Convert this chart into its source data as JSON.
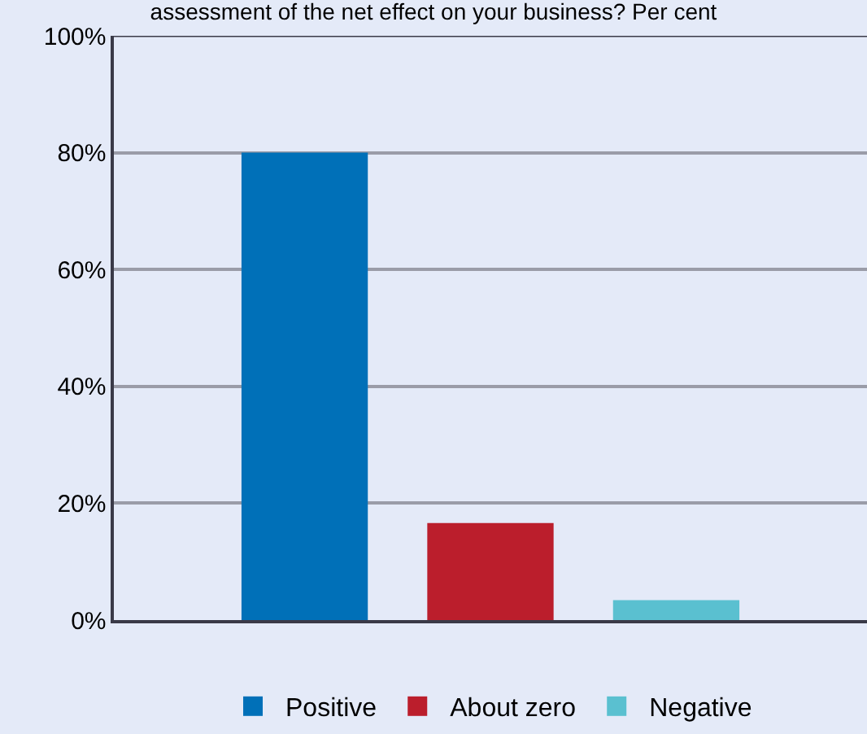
{
  "chart_data": {
    "type": "bar",
    "title": "assessment of the net effect on your business? Per cent",
    "categories": [
      null
    ],
    "series": [
      {
        "name": "Positive",
        "color": "#0070b8",
        "values": [
          80
        ]
      },
      {
        "name": "About zero",
        "color": "#bb1e2c",
        "values": [
          16.6
        ]
      },
      {
        "name": "Negative",
        "color": "#5ac0d0",
        "values": [
          3.4
        ]
      }
    ],
    "ylim": [
      0,
      100
    ],
    "yticks": [
      {
        "value": 0,
        "label": "0%"
      },
      {
        "value": 20,
        "label": "20%"
      },
      {
        "value": 40,
        "label": "40%"
      },
      {
        "value": 60,
        "label": "60%"
      },
      {
        "value": 80,
        "label": "80%"
      },
      {
        "value": 100,
        "label": "100%"
      }
    ],
    "grid": "y",
    "legend": "bottom"
  }
}
